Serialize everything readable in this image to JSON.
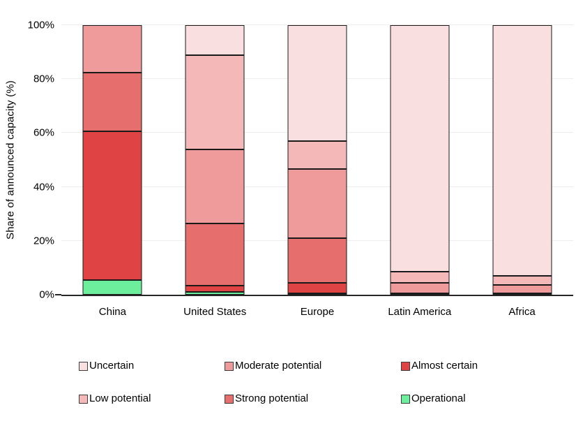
{
  "chart_data": {
    "type": "bar",
    "stacked": true,
    "title": "",
    "xlabel": "",
    "ylabel": "Share of announced capacity (%)",
    "ylim": [
      0,
      100
    ],
    "grid": true,
    "legend_position": "bottom",
    "categories": [
      "China",
      "United States",
      "Europe",
      "Latin America",
      "Africa"
    ],
    "yticks": [
      {
        "pct": 0,
        "label": "0%"
      },
      {
        "pct": 20,
        "label": "20%"
      },
      {
        "pct": 40,
        "label": "40%"
      },
      {
        "pct": 60,
        "label": "60%"
      },
      {
        "pct": 80,
        "label": "80%"
      },
      {
        "pct": 100,
        "label": "100%"
      }
    ],
    "series": [
      {
        "name": "Operational",
        "color": "#6cee9c",
        "values": [
          5.5,
          1,
          0.5,
          0,
          0
        ]
      },
      {
        "name": "Almost certain",
        "color": "#e04343",
        "values": [
          55,
          2.5,
          4,
          0.5,
          0.5
        ]
      },
      {
        "name": "Strong potential",
        "color": "#e66e6c",
        "values": [
          22,
          23,
          16.5,
          0,
          0
        ]
      },
      {
        "name": "Moderate potential",
        "color": "#ef9b9b",
        "values": [
          17.5,
          27.5,
          25.5,
          4,
          3
        ]
      },
      {
        "name": "Low potential",
        "color": "#f5b8b9",
        "values": [
          0,
          35,
          10.5,
          4,
          3.5
        ]
      },
      {
        "name": "Uncertain",
        "color": "#fadfe0",
        "values": [
          0,
          11,
          43,
          91.5,
          93
        ]
      }
    ],
    "legend_rows": [
      [
        "Uncertain",
        "Moderate potential",
        "Almost certain"
      ],
      [
        "Low potential",
        "Strong potential",
        "Operational"
      ]
    ]
  },
  "styles": {
    "bar_border": "#1a1a1a",
    "gridline": "#ededed",
    "axis": "#262626",
    "swatch_border": "#3c3c3c"
  }
}
